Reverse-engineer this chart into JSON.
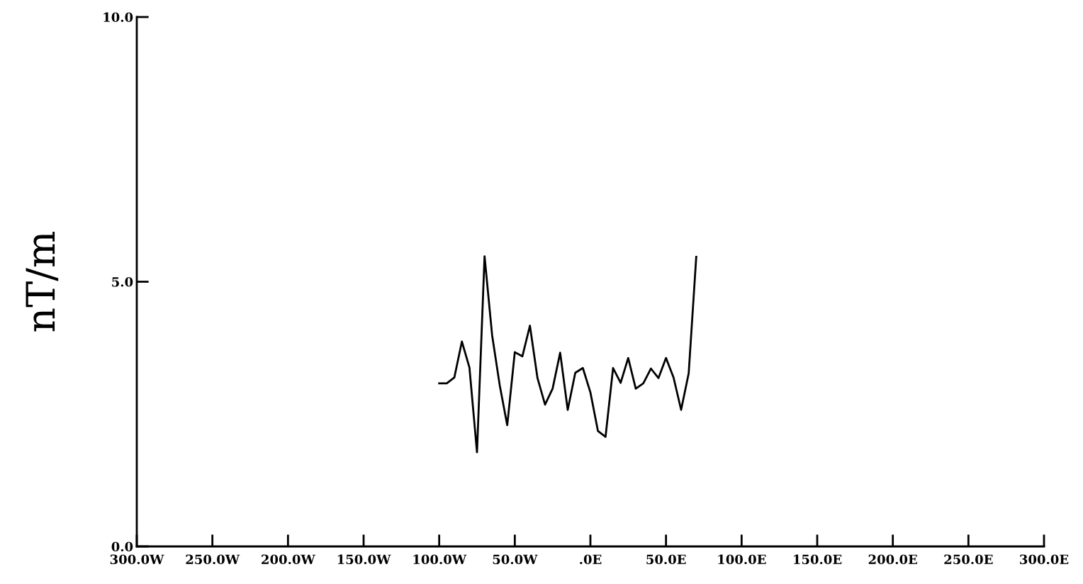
{
  "chart_data": {
    "type": "line",
    "ylabel": "nT/m",
    "x": [
      -100,
      -95,
      -90,
      -85,
      -80,
      -75,
      -70,
      -65,
      -60,
      -55,
      -50,
      -45,
      -40,
      -35,
      -30,
      -25,
      -20,
      -15,
      -10,
      -5,
      0,
      5,
      10,
      15,
      20,
      25,
      30,
      35,
      40,
      45,
      50,
      55,
      60,
      65,
      70
    ],
    "series": [
      {
        "color": "#000000",
        "values": [
          3.08,
          3.08,
          3.19,
          3.87,
          3.38,
          1.78,
          5.48,
          3.99,
          3.05,
          2.29,
          3.67,
          3.59,
          4.17,
          3.18,
          2.68,
          2.98,
          3.66,
          2.58,
          3.28,
          3.37,
          2.91,
          2.18,
          2.07,
          3.37,
          3.09,
          3.56,
          2.98,
          3.08,
          3.36,
          3.18,
          3.56,
          3.19,
          2.58,
          3.27,
          5.47
        ]
      }
    ],
    "xlim": [
      -300,
      300
    ],
    "xticks": [
      {
        "value": -300,
        "label": "300.0W"
      },
      {
        "value": -250,
        "label": "250.0W"
      },
      {
        "value": -200,
        "label": "200.0W"
      },
      {
        "value": -150,
        "label": "150.0W"
      },
      {
        "value": -100,
        "label": "100.0W"
      },
      {
        "value": -50,
        "label": "50.0W"
      },
      {
        "value": 0,
        "label": ".0E"
      },
      {
        "value": 50,
        "label": "50.0E"
      },
      {
        "value": 100,
        "label": "100.0E"
      },
      {
        "value": 150,
        "label": "150.0E"
      },
      {
        "value": 200,
        "label": "200.0E"
      },
      {
        "value": 250,
        "label": "250.0E"
      },
      {
        "value": 300,
        "label": "300.0E"
      }
    ],
    "ylim": [
      0,
      10
    ],
    "yticks": [
      {
        "value": 0,
        "label": "0.0"
      },
      {
        "value": 5,
        "label": "5.0"
      },
      {
        "value": 10,
        "label": "10.0"
      }
    ],
    "marker": "none",
    "line_style": "solid"
  }
}
